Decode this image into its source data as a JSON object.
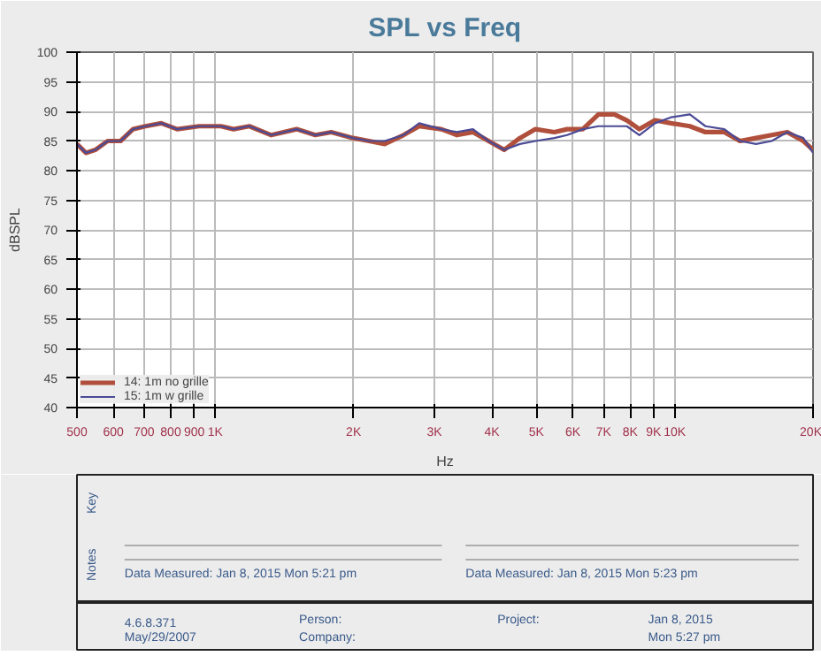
{
  "chart_data": {
    "type": "line",
    "title": "SPL vs Freq",
    "ylabel": "dBSPL",
    "xlabel": "Hz",
    "log": "x",
    "grid": true,
    "legend": "bottom left",
    "line_style": "solid",
    "marker": "none",
    "x": [
      500,
      523,
      548,
      583,
      622,
      662,
      705,
      763,
      826,
      922,
      1028,
      1096,
      1186,
      1324,
      1503,
      1651,
      1788,
      1996,
      2161,
      2337,
      2568,
      2778,
      3104,
      3357,
      3638,
      3935,
      4255,
      4603,
      4977,
      5470,
      5832,
      6308,
      6823,
      7390,
      7866,
      8376,
      9058,
      9812,
      10786,
      11665,
      12823,
      13868,
      15030,
      16255,
      17579,
      19052,
      20000
    ],
    "series": [
      {
        "name": "14: 1m no grille",
        "color": "#b0503c",
        "values": [
          84.5,
          83,
          83.5,
          85,
          85,
          87,
          87.5,
          88,
          87,
          87.5,
          87.5,
          87,
          87.5,
          86,
          87,
          86,
          86.5,
          85.5,
          85,
          84.5,
          86,
          87.5,
          87,
          86,
          86.5,
          85,
          83.5,
          85.5,
          87,
          86.5,
          87,
          87,
          89.5,
          89.5,
          88.5,
          87,
          88.5,
          88,
          87.5,
          86.5,
          86.5,
          85,
          85.5,
          86,
          86.5,
          85,
          83.5
        ]
      },
      {
        "name": "15: 1m w grille",
        "color": "#4a4a96",
        "values": [
          84.5,
          83,
          83.5,
          85,
          85,
          87,
          87.5,
          88,
          87,
          87.5,
          87.5,
          87,
          87.5,
          86,
          87,
          86,
          86.5,
          85.5,
          85,
          85,
          86,
          88,
          87,
          86.5,
          87,
          85,
          83.5,
          84.5,
          85,
          85.5,
          86,
          87,
          87.5,
          87.5,
          87.5,
          86,
          88,
          89,
          89.5,
          87.5,
          87,
          85,
          84.5,
          85,
          86.5,
          85.5,
          83
        ]
      }
    ],
    "xlim": [
      500,
      20000
    ],
    "xticks": [
      500,
      600,
      700,
      800,
      900,
      {
        "value": 1000,
        "label": "1K"
      },
      {
        "value": 2000,
        "label": "2K"
      },
      {
        "value": 3000,
        "label": "3K"
      },
      {
        "value": 4000,
        "label": "4K"
      },
      {
        "value": 5000,
        "label": "5K"
      },
      {
        "value": 6000,
        "label": "6K"
      },
      {
        "value": 7000,
        "label": "7K"
      },
      {
        "value": 8000,
        "label": "8K"
      },
      {
        "value": 9000,
        "label": "9K"
      },
      {
        "value": 10000,
        "label": "10K"
      },
      {
        "value": 20000,
        "label": "20K"
      }
    ],
    "ylim": [
      40,
      100
    ],
    "yticks": [
      40,
      45,
      50,
      55,
      60,
      65,
      70,
      75,
      80,
      85,
      90,
      95,
      100
    ],
    "annotations": [
      "Key",
      "Notes",
      "Data Measured: Jan 8, 2015 Mon 5:21 pm",
      "Data Measured: Jan 8, 2015 Mon 5:23 pm",
      "4.6.8.371",
      "May/29/2007",
      "Person:",
      "Company:",
      "Project:",
      "Jan 8, 2015",
      "Mon 5:27 pm"
    ]
  }
}
